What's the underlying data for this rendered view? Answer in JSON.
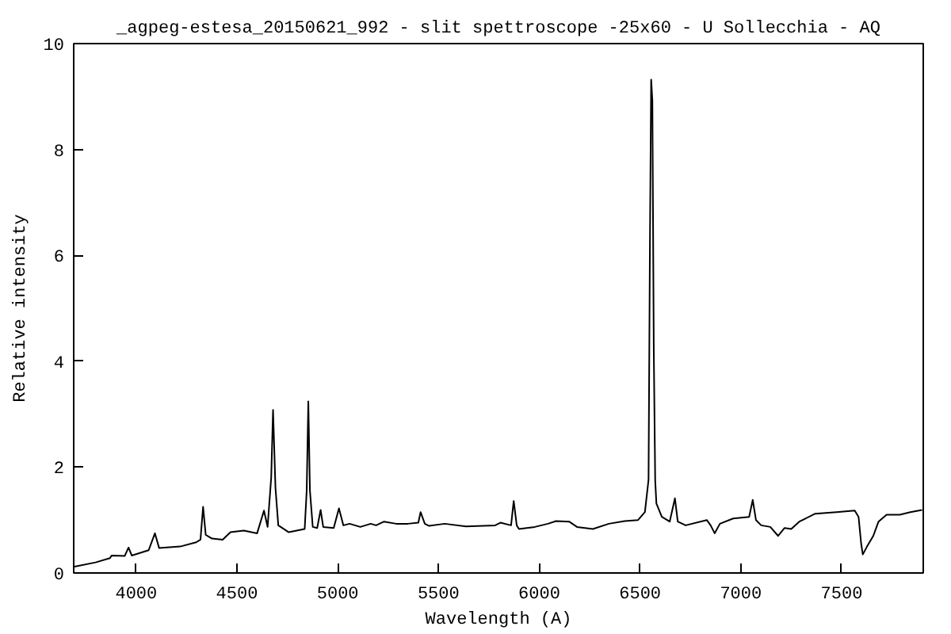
{
  "chart_data": {
    "type": "line",
    "title": "_agpeg-estesa_20150621_992 - slit spettroscope -25x60 - U Sollecchia - AQ",
    "xlabel": "Wavelength (A)",
    "ylabel": "Relative intensity",
    "xlim": [
      3690,
      7905
    ],
    "ylim": [
      0,
      10
    ],
    "xticks": [
      4000,
      4500,
      5000,
      5500,
      6000,
      6500,
      7000,
      7500
    ],
    "yticks": [
      0,
      2,
      4,
      6,
      8,
      10
    ],
    "series": [
      {
        "color": "#000000",
        "x": [
          3694,
          3799,
          3870,
          3878,
          3943,
          3962,
          3978,
          4062,
          4093,
          4114,
          4219,
          4298,
          4319,
          4332,
          4345,
          4376,
          4429,
          4468,
          4534,
          4600,
          4634,
          4652,
          4670,
          4679,
          4691,
          4705,
          4757,
          4836,
          4846,
          4854,
          4862,
          4876,
          4898,
          4915,
          4928,
          4980,
          5006,
          5028,
          5059,
          5112,
          5164,
          5190,
          5230,
          5290,
          5348,
          5400,
          5411,
          5432,
          5453,
          5531,
          5636,
          5781,
          5807,
          5860,
          5873,
          5888,
          5899,
          5978,
          6043,
          6083,
          6148,
          6187,
          6266,
          6345,
          6424,
          6490,
          6524,
          6542,
          6549,
          6555,
          6561,
          6568,
          6575,
          6581,
          6608,
          6647,
          6673,
          6687,
          6726,
          6831,
          6850,
          6870,
          6896,
          6962,
          7041,
          7059,
          7075,
          7101,
          7146,
          7185,
          7217,
          7250,
          7290,
          7369,
          7474,
          7565,
          7584,
          7597,
          7605,
          7626,
          7657,
          7683,
          7723,
          7789,
          7841,
          7899
        ],
        "values": [
          0.12,
          0.2,
          0.28,
          0.33,
          0.32,
          0.48,
          0.33,
          0.43,
          0.75,
          0.47,
          0.5,
          0.58,
          0.63,
          1.25,
          0.72,
          0.65,
          0.63,
          0.77,
          0.8,
          0.75,
          1.18,
          0.87,
          1.81,
          3.08,
          1.61,
          0.9,
          0.77,
          0.83,
          1.56,
          3.24,
          1.56,
          0.87,
          0.85,
          1.19,
          0.87,
          0.85,
          1.22,
          0.9,
          0.93,
          0.87,
          0.93,
          0.9,
          0.97,
          0.93,
          0.93,
          0.95,
          1.15,
          0.93,
          0.89,
          0.93,
          0.88,
          0.9,
          0.95,
          0.9,
          1.36,
          0.9,
          0.83,
          0.87,
          0.93,
          0.98,
          0.97,
          0.87,
          0.83,
          0.93,
          0.98,
          1.0,
          1.15,
          1.76,
          6.28,
          9.32,
          8.92,
          4.2,
          1.75,
          1.31,
          1.06,
          0.97,
          1.41,
          0.97,
          0.9,
          1.0,
          0.9,
          0.75,
          0.93,
          1.03,
          1.06,
          1.38,
          1.0,
          0.9,
          0.87,
          0.7,
          0.85,
          0.83,
          0.97,
          1.12,
          1.15,
          1.18,
          1.06,
          0.55,
          0.35,
          0.5,
          0.7,
          0.97,
          1.1,
          1.1,
          1.15,
          1.19
        ]
      }
    ]
  }
}
